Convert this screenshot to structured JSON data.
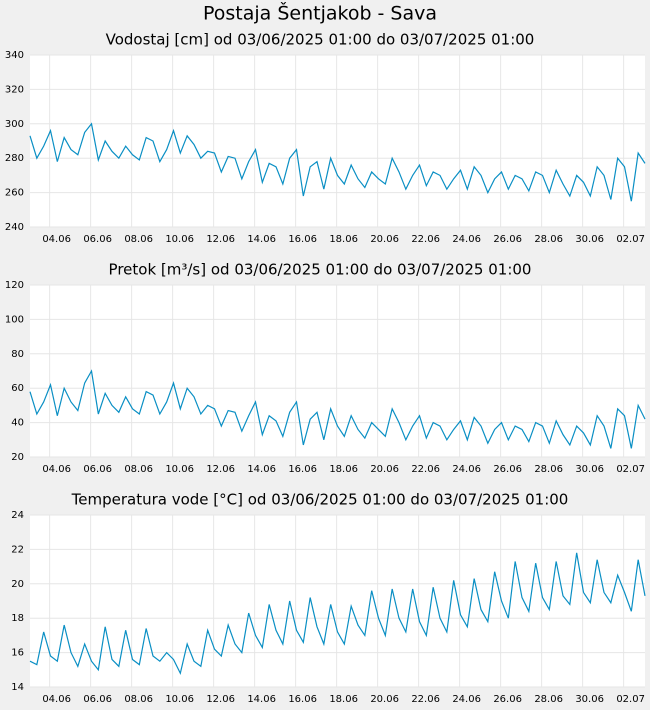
{
  "title": "Postaja Šentjakob - Sava",
  "chart_data": [
    {
      "type": "line",
      "title": "Vodostaj [cm] od 03/06/2025 01:00 do 03/07/2025 01:00",
      "color": "#0a8fc4",
      "grid": true,
      "x": [
        "2025-06-03T01:00",
        "2025-06-03T09:00",
        "2025-06-03T17:00",
        "2025-06-04T01:00",
        "2025-06-04T09:00",
        "2025-06-04T17:00",
        "2025-06-05T01:00",
        "2025-06-05T09:00",
        "2025-06-05T17:00",
        "2025-06-06T01:00",
        "2025-06-06T09:00",
        "2025-06-06T17:00",
        "2025-06-07T01:00",
        "2025-06-07T09:00",
        "2025-06-07T17:00",
        "2025-06-08T01:00",
        "2025-06-08T09:00",
        "2025-06-08T17:00",
        "2025-06-09T01:00",
        "2025-06-09T09:00",
        "2025-06-09T17:00",
        "2025-06-10T01:00",
        "2025-06-10T09:00",
        "2025-06-10T17:00",
        "2025-06-11T01:00",
        "2025-06-11T09:00",
        "2025-06-11T17:00",
        "2025-06-12T01:00",
        "2025-06-12T09:00",
        "2025-06-12T17:00",
        "2025-06-13T01:00",
        "2025-06-13T09:00",
        "2025-06-13T17:00",
        "2025-06-14T01:00",
        "2025-06-14T09:00",
        "2025-06-14T17:00",
        "2025-06-15T01:00",
        "2025-06-15T09:00",
        "2025-06-15T17:00",
        "2025-06-16T01:00",
        "2025-06-16T09:00",
        "2025-06-16T17:00",
        "2025-06-17T01:00",
        "2025-06-17T09:00",
        "2025-06-17T17:00",
        "2025-06-18T01:00",
        "2025-06-18T09:00",
        "2025-06-18T17:00",
        "2025-06-19T01:00",
        "2025-06-19T09:00",
        "2025-06-19T17:00",
        "2025-06-20T01:00",
        "2025-06-20T09:00",
        "2025-06-20T17:00",
        "2025-06-21T01:00",
        "2025-06-21T09:00",
        "2025-06-21T17:00",
        "2025-06-22T01:00",
        "2025-06-22T09:00",
        "2025-06-22T17:00",
        "2025-06-23T01:00",
        "2025-06-23T09:00",
        "2025-06-23T17:00",
        "2025-06-24T01:00",
        "2025-06-24T09:00",
        "2025-06-24T17:00",
        "2025-06-25T01:00",
        "2025-06-25T09:00",
        "2025-06-25T17:00",
        "2025-06-26T01:00",
        "2025-06-26T09:00",
        "2025-06-26T17:00",
        "2025-06-27T01:00",
        "2025-06-27T09:00",
        "2025-06-27T17:00",
        "2025-06-28T01:00",
        "2025-06-28T09:00",
        "2025-06-28T17:00",
        "2025-06-29T01:00",
        "2025-06-29T09:00",
        "2025-06-29T17:00",
        "2025-06-30T01:00",
        "2025-06-30T09:00",
        "2025-06-30T17:00",
        "2025-07-01T01:00",
        "2025-07-01T09:00",
        "2025-07-01T17:00",
        "2025-07-02T01:00",
        "2025-07-02T09:00",
        "2025-07-02T17:00",
        "2025-07-03T01:00"
      ],
      "values": [
        293,
        280,
        287,
        296,
        278,
        292,
        285,
        282,
        295,
        300,
        279,
        290,
        284,
        280,
        287,
        282,
        279,
        292,
        290,
        278,
        285,
        296,
        283,
        293,
        288,
        280,
        284,
        283,
        272,
        281,
        280,
        268,
        278,
        285,
        266,
        277,
        275,
        265,
        280,
        285,
        258,
        275,
        278,
        262,
        280,
        270,
        265,
        276,
        268,
        263,
        272,
        268,
        265,
        280,
        272,
        262,
        270,
        276,
        264,
        272,
        270,
        262,
        268,
        273,
        262,
        275,
        270,
        260,
        268,
        272,
        262,
        270,
        268,
        261,
        272,
        270,
        260,
        273,
        265,
        258,
        270,
        266,
        258,
        275,
        270,
        256,
        280,
        275,
        255,
        283,
        277
      ],
      "xlim": [
        "2025-06-03T01:00",
        "2025-07-03T01:00"
      ],
      "xticks": [
        {
          "value": "2025-06-04T00:00",
          "label": "04.06"
        },
        {
          "value": "2025-06-06T00:00",
          "label": "06.06"
        },
        {
          "value": "2025-06-08T00:00",
          "label": "08.06"
        },
        {
          "value": "2025-06-10T00:00",
          "label": "10.06"
        },
        {
          "value": "2025-06-12T00:00",
          "label": "12.06"
        },
        {
          "value": "2025-06-14T00:00",
          "label": "14.06"
        },
        {
          "value": "2025-06-16T00:00",
          "label": "16.06"
        },
        {
          "value": "2025-06-18T00:00",
          "label": "18.06"
        },
        {
          "value": "2025-06-20T00:00",
          "label": "20.06"
        },
        {
          "value": "2025-06-22T00:00",
          "label": "22.06"
        },
        {
          "value": "2025-06-24T00:00",
          "label": "24.06"
        },
        {
          "value": "2025-06-26T00:00",
          "label": "26.06"
        },
        {
          "value": "2025-06-28T00:00",
          "label": "28.06"
        },
        {
          "value": "2025-06-30T00:00",
          "label": "30.06"
        },
        {
          "value": "2025-07-02T00:00",
          "label": "02.07"
        }
      ],
      "ylim": [
        240,
        340
      ],
      "yticks": [
        240,
        260,
        280,
        300,
        320,
        340
      ]
    },
    {
      "type": "line",
      "title": "Pretok [m³/s] od 03/06/2025 01:00 do 03/07/2025 01:00",
      "color": "#0a8fc4",
      "grid": true,
      "x": [
        "2025-06-03T01:00",
        "2025-06-03T09:00",
        "2025-06-03T17:00",
        "2025-06-04T01:00",
        "2025-06-04T09:00",
        "2025-06-04T17:00",
        "2025-06-05T01:00",
        "2025-06-05T09:00",
        "2025-06-05T17:00",
        "2025-06-06T01:00",
        "2025-06-06T09:00",
        "2025-06-06T17:00",
        "2025-06-07T01:00",
        "2025-06-07T09:00",
        "2025-06-07T17:00",
        "2025-06-08T01:00",
        "2025-06-08T09:00",
        "2025-06-08T17:00",
        "2025-06-09T01:00",
        "2025-06-09T09:00",
        "2025-06-09T17:00",
        "2025-06-10T01:00",
        "2025-06-10T09:00",
        "2025-06-10T17:00",
        "2025-06-11T01:00",
        "2025-06-11T09:00",
        "2025-06-11T17:00",
        "2025-06-12T01:00",
        "2025-06-12T09:00",
        "2025-06-12T17:00",
        "2025-06-13T01:00",
        "2025-06-13T09:00",
        "2025-06-13T17:00",
        "2025-06-14T01:00",
        "2025-06-14T09:00",
        "2025-06-14T17:00",
        "2025-06-15T01:00",
        "2025-06-15T09:00",
        "2025-06-15T17:00",
        "2025-06-16T01:00",
        "2025-06-16T09:00",
        "2025-06-16T17:00",
        "2025-06-17T01:00",
        "2025-06-17T09:00",
        "2025-06-17T17:00",
        "2025-06-18T01:00",
        "2025-06-18T09:00",
        "2025-06-18T17:00",
        "2025-06-19T01:00",
        "2025-06-19T09:00",
        "2025-06-19T17:00",
        "2025-06-20T01:00",
        "2025-06-20T09:00",
        "2025-06-20T17:00",
        "2025-06-21T01:00",
        "2025-06-21T09:00",
        "2025-06-21T17:00",
        "2025-06-22T01:00",
        "2025-06-22T09:00",
        "2025-06-22T17:00",
        "2025-06-23T01:00",
        "2025-06-23T09:00",
        "2025-06-23T17:00",
        "2025-06-24T01:00",
        "2025-06-24T09:00",
        "2025-06-24T17:00",
        "2025-06-25T01:00",
        "2025-06-25T09:00",
        "2025-06-25T17:00",
        "2025-06-26T01:00",
        "2025-06-26T09:00",
        "2025-06-26T17:00",
        "2025-06-27T01:00",
        "2025-06-27T09:00",
        "2025-06-27T17:00",
        "2025-06-28T01:00",
        "2025-06-28T09:00",
        "2025-06-28T17:00",
        "2025-06-29T01:00",
        "2025-06-29T09:00",
        "2025-06-29T17:00",
        "2025-06-30T01:00",
        "2025-06-30T09:00",
        "2025-06-30T17:00",
        "2025-07-01T01:00",
        "2025-07-01T09:00",
        "2025-07-01T17:00",
        "2025-07-02T01:00",
        "2025-07-02T09:00",
        "2025-07-02T17:00",
        "2025-07-03T01:00"
      ],
      "values": [
        58,
        45,
        52,
        62,
        44,
        60,
        52,
        47,
        63,
        70,
        45,
        57,
        50,
        46,
        55,
        48,
        45,
        58,
        56,
        45,
        52,
        63,
        48,
        60,
        55,
        45,
        50,
        48,
        38,
        47,
        46,
        35,
        44,
        52,
        33,
        44,
        41,
        32,
        46,
        52,
        27,
        42,
        46,
        30,
        48,
        38,
        32,
        44,
        36,
        31,
        40,
        36,
        32,
        48,
        40,
        30,
        38,
        44,
        31,
        40,
        38,
        30,
        36,
        41,
        30,
        43,
        38,
        28,
        36,
        40,
        30,
        38,
        36,
        29,
        40,
        38,
        28,
        41,
        33,
        27,
        38,
        34,
        27,
        44,
        38,
        25,
        48,
        44,
        25,
        50,
        42
      ],
      "xlim": [
        "2025-06-03T01:00",
        "2025-07-03T01:00"
      ],
      "xticks": [
        {
          "value": "2025-06-04T00:00",
          "label": "04.06"
        },
        {
          "value": "2025-06-06T00:00",
          "label": "06.06"
        },
        {
          "value": "2025-06-08T00:00",
          "label": "08.06"
        },
        {
          "value": "2025-06-10T00:00",
          "label": "10.06"
        },
        {
          "value": "2025-06-12T00:00",
          "label": "12.06"
        },
        {
          "value": "2025-06-14T00:00",
          "label": "14.06"
        },
        {
          "value": "2025-06-16T00:00",
          "label": "16.06"
        },
        {
          "value": "2025-06-18T00:00",
          "label": "18.06"
        },
        {
          "value": "2025-06-20T00:00",
          "label": "20.06"
        },
        {
          "value": "2025-06-22T00:00",
          "label": "22.06"
        },
        {
          "value": "2025-06-24T00:00",
          "label": "24.06"
        },
        {
          "value": "2025-06-26T00:00",
          "label": "26.06"
        },
        {
          "value": "2025-06-28T00:00",
          "label": "28.06"
        },
        {
          "value": "2025-06-30T00:00",
          "label": "30.06"
        },
        {
          "value": "2025-07-02T00:00",
          "label": "02.07"
        }
      ],
      "ylim": [
        20,
        120
      ],
      "yticks": [
        20,
        40,
        60,
        80,
        100,
        120
      ]
    },
    {
      "type": "line",
      "title": "Temperatura vode [°C] od 03/06/2025 01:00 do 03/07/2025 01:00",
      "color": "#0a8fc4",
      "grid": true,
      "x": [
        "2025-06-03T01:00",
        "2025-06-03T09:00",
        "2025-06-03T17:00",
        "2025-06-04T01:00",
        "2025-06-04T09:00",
        "2025-06-04T17:00",
        "2025-06-05T01:00",
        "2025-06-05T09:00",
        "2025-06-05T17:00",
        "2025-06-06T01:00",
        "2025-06-06T09:00",
        "2025-06-06T17:00",
        "2025-06-07T01:00",
        "2025-06-07T09:00",
        "2025-06-07T17:00",
        "2025-06-08T01:00",
        "2025-06-08T09:00",
        "2025-06-08T17:00",
        "2025-06-09T01:00",
        "2025-06-09T09:00",
        "2025-06-09T17:00",
        "2025-06-10T01:00",
        "2025-06-10T09:00",
        "2025-06-10T17:00",
        "2025-06-11T01:00",
        "2025-06-11T09:00",
        "2025-06-11T17:00",
        "2025-06-12T01:00",
        "2025-06-12T09:00",
        "2025-06-12T17:00",
        "2025-06-13T01:00",
        "2025-06-13T09:00",
        "2025-06-13T17:00",
        "2025-06-14T01:00",
        "2025-06-14T09:00",
        "2025-06-14T17:00",
        "2025-06-15T01:00",
        "2025-06-15T09:00",
        "2025-06-15T17:00",
        "2025-06-16T01:00",
        "2025-06-16T09:00",
        "2025-06-16T17:00",
        "2025-06-17T01:00",
        "2025-06-17T09:00",
        "2025-06-17T17:00",
        "2025-06-18T01:00",
        "2025-06-18T09:00",
        "2025-06-18T17:00",
        "2025-06-19T01:00",
        "2025-06-19T09:00",
        "2025-06-19T17:00",
        "2025-06-20T01:00",
        "2025-06-20T09:00",
        "2025-06-20T17:00",
        "2025-06-21T01:00",
        "2025-06-21T09:00",
        "2025-06-21T17:00",
        "2025-06-22T01:00",
        "2025-06-22T09:00",
        "2025-06-22T17:00",
        "2025-06-23T01:00",
        "2025-06-23T09:00",
        "2025-06-23T17:00",
        "2025-06-24T01:00",
        "2025-06-24T09:00",
        "2025-06-24T17:00",
        "2025-06-25T01:00",
        "2025-06-25T09:00",
        "2025-06-25T17:00",
        "2025-06-26T01:00",
        "2025-06-26T09:00",
        "2025-06-26T17:00",
        "2025-06-27T01:00",
        "2025-06-27T09:00",
        "2025-06-27T17:00",
        "2025-06-28T01:00",
        "2025-06-28T09:00",
        "2025-06-28T17:00",
        "2025-06-29T01:00",
        "2025-06-29T09:00",
        "2025-06-29T17:00",
        "2025-06-30T01:00",
        "2025-06-30T09:00",
        "2025-06-30T17:00",
        "2025-07-01T01:00",
        "2025-07-01T09:00",
        "2025-07-01T17:00",
        "2025-07-02T01:00",
        "2025-07-02T09:00",
        "2025-07-02T17:00",
        "2025-07-03T01:00"
      ],
      "values": [
        15.5,
        15.3,
        17.2,
        15.8,
        15.5,
        17.6,
        16.0,
        15.2,
        16.5,
        15.5,
        15.0,
        17.5,
        15.6,
        15.2,
        17.3,
        15.6,
        15.3,
        17.4,
        15.8,
        15.5,
        16.0,
        15.6,
        14.8,
        16.5,
        15.5,
        15.2,
        17.3,
        16.2,
        15.8,
        17.6,
        16.5,
        16.0,
        18.3,
        17.0,
        16.3,
        18.8,
        17.3,
        16.5,
        19.0,
        17.3,
        16.6,
        19.2,
        17.5,
        16.5,
        18.8,
        17.2,
        16.5,
        18.7,
        17.6,
        17.0,
        19.6,
        18.0,
        17.0,
        19.7,
        18.0,
        17.2,
        19.7,
        17.8,
        17.0,
        19.8,
        18.0,
        17.2,
        20.2,
        18.2,
        17.5,
        20.3,
        18.5,
        17.8,
        20.7,
        19.0,
        18.0,
        21.3,
        19.2,
        18.4,
        21.2,
        19.2,
        18.5,
        21.3,
        19.3,
        18.8,
        21.8,
        19.5,
        18.9,
        21.4,
        19.5,
        18.9,
        20.5,
        19.5,
        18.4,
        21.4,
        19.3
      ],
      "xlim": [
        "2025-06-03T01:00",
        "2025-07-03T01:00"
      ],
      "xticks": [
        {
          "value": "2025-06-04T00:00",
          "label": "04.06"
        },
        {
          "value": "2025-06-06T00:00",
          "label": "06.06"
        },
        {
          "value": "2025-06-08T00:00",
          "label": "08.06"
        },
        {
          "value": "2025-06-10T00:00",
          "label": "10.06"
        },
        {
          "value": "2025-06-12T00:00",
          "label": "12.06"
        },
        {
          "value": "2025-06-14T00:00",
          "label": "14.06"
        },
        {
          "value": "2025-06-16T00:00",
          "label": "16.06"
        },
        {
          "value": "2025-06-18T00:00",
          "label": "18.06"
        },
        {
          "value": "2025-06-20T00:00",
          "label": "20.06"
        },
        {
          "value": "2025-06-22T00:00",
          "label": "22.06"
        },
        {
          "value": "2025-06-24T00:00",
          "label": "24.06"
        },
        {
          "value": "2025-06-26T00:00",
          "label": "26.06"
        },
        {
          "value": "2025-06-28T00:00",
          "label": "28.06"
        },
        {
          "value": "2025-06-30T00:00",
          "label": "30.06"
        },
        {
          "value": "2025-07-02T00:00",
          "label": "02.07"
        }
      ],
      "ylim": [
        14,
        24
      ],
      "yticks": [
        14,
        16,
        18,
        20,
        22,
        24
      ]
    }
  ]
}
